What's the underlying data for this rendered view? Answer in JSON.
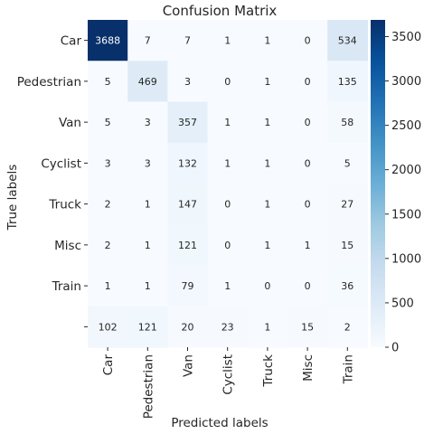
{
  "chart_data": {
    "type": "heatmap",
    "title": "Confusion Matrix",
    "xlabel": "Predicted labels",
    "ylabel": "True labels",
    "x_categories": [
      "Car",
      "Pedestrian",
      "Van",
      "Cyclist",
      "Truck",
      "Misc",
      "Train"
    ],
    "y_categories": [
      "Car",
      "Pedestrian",
      "Van",
      "Cyclist",
      "Truck",
      "Misc",
      "Train",
      ""
    ],
    "values": [
      [
        3688,
        7,
        7,
        1,
        1,
        0,
        534
      ],
      [
        5,
        469,
        3,
        0,
        1,
        0,
        135
      ],
      [
        5,
        3,
        357,
        1,
        1,
        0,
        58
      ],
      [
        3,
        3,
        132,
        1,
        1,
        0,
        5
      ],
      [
        2,
        1,
        147,
        0,
        1,
        0,
        27
      ],
      [
        2,
        1,
        121,
        0,
        1,
        1,
        15
      ],
      [
        1,
        1,
        79,
        1,
        0,
        0,
        36
      ],
      [
        102,
        121,
        20,
        23,
        1,
        15,
        2
      ]
    ],
    "colorbar": {
      "colormap": "Blues",
      "min": 0,
      "max": 3688,
      "ticks": [
        0,
        500,
        1000,
        1500,
        2000,
        2500,
        3000,
        3500
      ]
    },
    "annotations": "cell values shown in each cell",
    "grid": false
  }
}
